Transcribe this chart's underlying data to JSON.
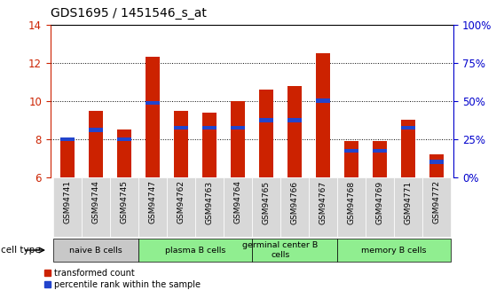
{
  "title": "GDS1695 / 1451546_s_at",
  "samples": [
    "GSM94741",
    "GSM94744",
    "GSM94745",
    "GSM94747",
    "GSM94762",
    "GSM94763",
    "GSM94764",
    "GSM94765",
    "GSM94766",
    "GSM94767",
    "GSM94768",
    "GSM94769",
    "GSM94771",
    "GSM94772"
  ],
  "red_values": [
    8.0,
    9.5,
    8.5,
    12.3,
    9.5,
    9.4,
    10.0,
    10.6,
    10.8,
    12.5,
    7.9,
    7.9,
    9.0,
    7.2
  ],
  "blue_values": [
    8.0,
    8.5,
    8.0,
    9.9,
    8.6,
    8.6,
    8.6,
    9.0,
    9.0,
    10.0,
    7.4,
    7.4,
    8.6,
    6.8
  ],
  "ylim_left": [
    6,
    14
  ],
  "ylim_right": [
    0,
    100
  ],
  "yticks_left": [
    6,
    8,
    10,
    12,
    14
  ],
  "yticks_right": [
    0,
    25,
    50,
    75,
    100
  ],
  "ytick_labels_right": [
    "0%",
    "25%",
    "50%",
    "75%",
    "100%"
  ],
  "group_labels": [
    "naive B cells",
    "plasma B cells",
    "germinal center B\ncells",
    "memory B cells"
  ],
  "group_colors": [
    "#c8c8c8",
    "#90ee90",
    "#90ee90",
    "#90ee90"
  ],
  "group_xranges": [
    [
      -0.5,
      2.5
    ],
    [
      2.5,
      6.5
    ],
    [
      6.5,
      9.5
    ],
    [
      9.5,
      13.5
    ]
  ],
  "group_centers": [
    1.0,
    4.5,
    7.5,
    11.5
  ],
  "bar_color_red": "#cc2200",
  "bar_color_blue": "#2244cc",
  "bar_width": 0.5,
  "tick_color_left": "#cc2200",
  "tick_color_right": "#0000cc",
  "legend_red": "transformed count",
  "legend_blue": "percentile rank within the sample",
  "background_color": "#ffffff"
}
